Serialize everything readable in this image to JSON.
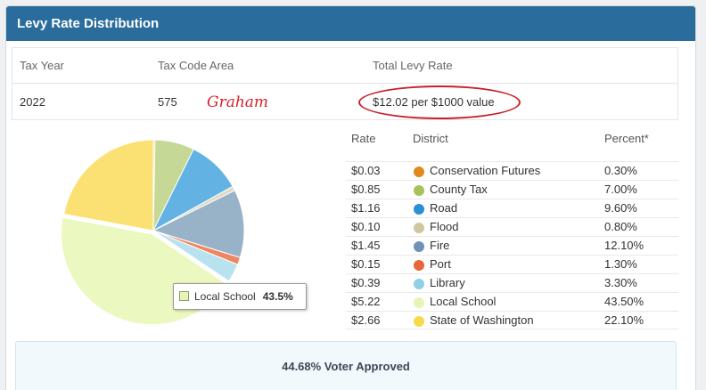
{
  "panel": {
    "title": "Levy Rate Distribution"
  },
  "info": {
    "headers": {
      "tax_year": "Tax Year",
      "tax_code_area": "Tax Code Area",
      "total_levy_rate": "Total Levy Rate"
    },
    "values": {
      "tax_year": "2022",
      "tax_code_area": "575",
      "total_levy_rate": "$12.02 per $1000 value"
    },
    "annotation": "Graham"
  },
  "districts": {
    "headers": {
      "rate": "Rate",
      "district": "District",
      "percent": "Percent*"
    },
    "rows": [
      {
        "rate": "$0.03",
        "name": "Conservation Futures",
        "percent": "0.30%",
        "value": 0.3,
        "color": "#e08a1e"
      },
      {
        "rate": "$0.85",
        "name": "County Tax",
        "percent": "7.00%",
        "value": 7.0,
        "color": "#a7c25a"
      },
      {
        "rate": "$1.16",
        "name": "Road",
        "percent": "9.60%",
        "value": 9.6,
        "color": "#2a8fd4"
      },
      {
        "rate": "$0.10",
        "name": "Flood",
        "percent": "0.80%",
        "value": 0.8,
        "color": "#cfc7a0"
      },
      {
        "rate": "$1.45",
        "name": "Fire",
        "percent": "12.10%",
        "value": 12.1,
        "color": "#6f93b5"
      },
      {
        "rate": "$0.15",
        "name": "Port",
        "percent": "1.30%",
        "value": 1.3,
        "color": "#e8643a"
      },
      {
        "rate": "$0.39",
        "name": "Library",
        "percent": "3.30%",
        "value": 3.3,
        "color": "#8fd0e6"
      },
      {
        "rate": "$5.22",
        "name": "Local School",
        "percent": "43.50%",
        "value": 43.5,
        "color": "#e6f5b5"
      },
      {
        "rate": "$2.66",
        "name": "State of Washington",
        "percent": "22.10%",
        "value": 22.1,
        "color": "#f8d94a"
      }
    ]
  },
  "chart_data": {
    "type": "pie",
    "categories": [
      "Conservation Futures",
      "County Tax",
      "Road",
      "Flood",
      "Fire",
      "Port",
      "Library",
      "Local School",
      "State of Washington"
    ],
    "values": [
      0.3,
      7.0,
      9.6,
      0.8,
      12.1,
      1.3,
      3.3,
      43.5,
      22.1
    ],
    "colors": [
      "#ead7a0",
      "#c6d895",
      "#62b3e4",
      "#ddd9c4",
      "#98b2c8",
      "#ef8561",
      "#b8e2ee",
      "#ebf8bf",
      "#fbe173"
    ],
    "highlighted": "Local School"
  },
  "tooltip": {
    "label": "Local School",
    "value": "43.5%"
  },
  "footer": {
    "voter_approved": "44.68% Voter Approved"
  }
}
